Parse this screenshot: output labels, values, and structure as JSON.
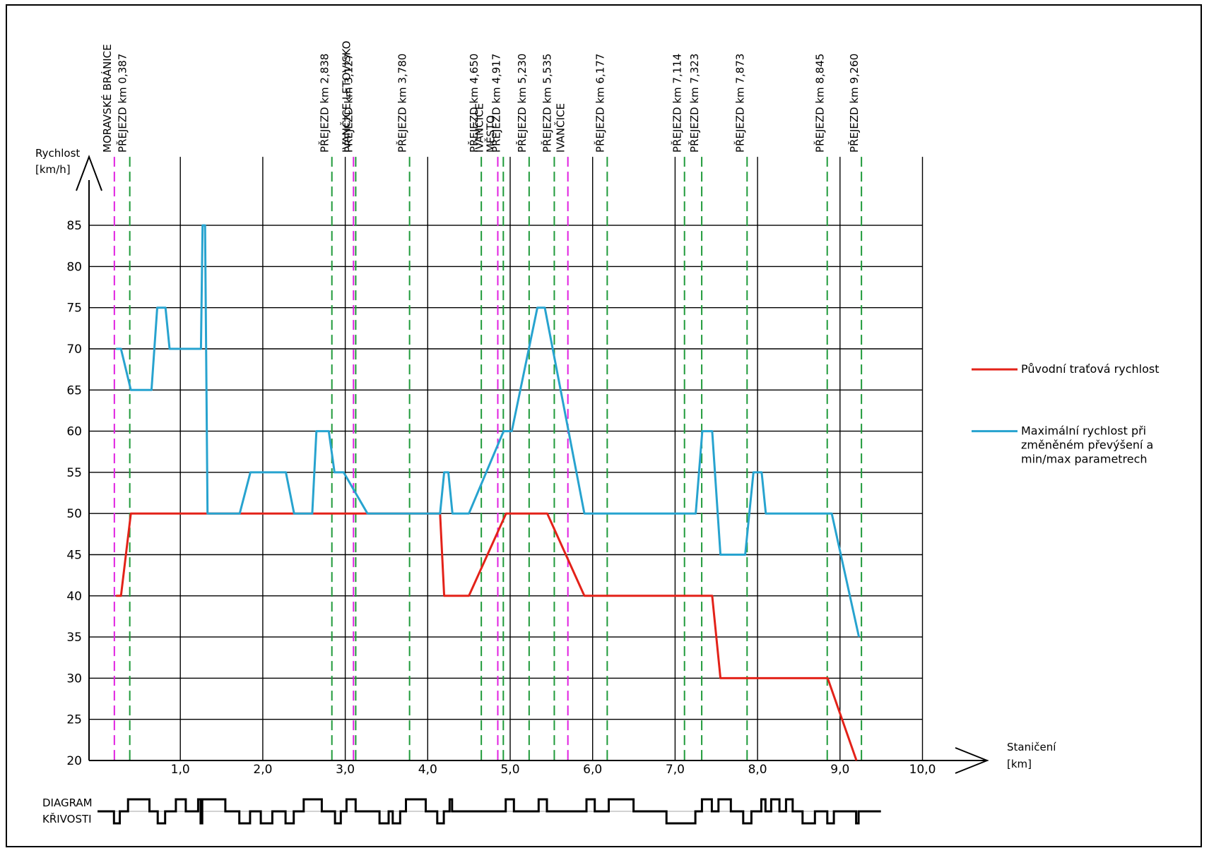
{
  "chart_data": {
    "type": "line",
    "y_axis_label": [
      "Rychlost",
      "[km/h]"
    ],
    "x_axis_label": [
      "Staničení",
      "[km]"
    ],
    "ylim": [
      20,
      85
    ],
    "xlim": [
      0,
      10.0
    ],
    "y_ticks": [
      20,
      25,
      30,
      35,
      40,
      45,
      50,
      55,
      60,
      65,
      70,
      75,
      80,
      85
    ],
    "x_ticks": [
      {
        "value": 1.0,
        "label": "1,0"
      },
      {
        "value": 2.0,
        "label": "2,0"
      },
      {
        "value": 3.0,
        "label": "3,0"
      },
      {
        "value": 4.0,
        "label": "4,0"
      },
      {
        "value": 5.0,
        "label": "5,0"
      },
      {
        "value": 6.0,
        "label": "6,0"
      },
      {
        "value": 7.0,
        "label": "7,0"
      },
      {
        "value": 8.0,
        "label": "8,0"
      },
      {
        "value": 9.0,
        "label": "9,0"
      },
      {
        "value": 10.0,
        "label": "10,0"
      }
    ],
    "grid": true,
    "markers": [
      {
        "km": 0.2,
        "type": "station",
        "lines": [
          "MORAVSKÉ BRÁNICE"
        ]
      },
      {
        "km": 0.387,
        "type": "crossing",
        "lines": [
          "PŘEJEZD km 0,387"
        ]
      },
      {
        "km": 2.838,
        "type": "crossing",
        "lines": [
          "PŘEJEZD km 2,838"
        ]
      },
      {
        "km": 3.1,
        "type": "station",
        "lines": [
          "IVANČICE LETOVISKO"
        ]
      },
      {
        "km": 3.127,
        "type": "crossing",
        "lines": [
          "PŘEJEZD km 3,127"
        ]
      },
      {
        "km": 3.78,
        "type": "crossing",
        "lines": [
          "PŘEJEZD km 3,780"
        ]
      },
      {
        "km": 4.65,
        "type": "crossing",
        "lines": [
          "PŘEJEZD km 4,650"
        ]
      },
      {
        "km": 4.85,
        "type": "station",
        "lines": [
          "IVANČICE",
          "MĚSTO"
        ]
      },
      {
        "km": 4.917,
        "type": "crossing",
        "lines": [
          "PŘEJEZD km 4,917"
        ]
      },
      {
        "km": 5.23,
        "type": "crossing",
        "lines": [
          "PŘEJEZD km 5,230"
        ]
      },
      {
        "km": 5.535,
        "type": "crossing",
        "lines": [
          "PŘEJEZD km 5,535"
        ]
      },
      {
        "km": 5.7,
        "type": "station",
        "lines": [
          "IVANČICE"
        ]
      },
      {
        "km": 6.177,
        "type": "crossing",
        "lines": [
          "PŘEJEZD km 6,177"
        ]
      },
      {
        "km": 7.114,
        "type": "crossing",
        "lines": [
          "PŘEJEZD km 7,114"
        ]
      },
      {
        "km": 7.323,
        "type": "crossing",
        "lines": [
          "PŘEJEZD km 7,323"
        ]
      },
      {
        "km": 7.873,
        "type": "crossing",
        "lines": [
          "PŘEJEZD km 7,873"
        ]
      },
      {
        "km": 8.845,
        "type": "crossing",
        "lines": [
          "PŘEJEZD km 8,845"
        ]
      },
      {
        "km": 9.26,
        "type": "crossing",
        "lines": [
          "PŘEJEZD km 9,260"
        ]
      }
    ],
    "series": [
      {
        "name": "Původní traťová rychlost",
        "color": "#e32219",
        "points": [
          [
            0.22,
            40
          ],
          [
            0.28,
            40
          ],
          [
            0.4,
            50
          ],
          [
            4.15,
            50
          ],
          [
            4.2,
            40
          ],
          [
            4.5,
            40
          ],
          [
            4.95,
            50
          ],
          [
            5.45,
            50
          ],
          [
            5.9,
            40
          ],
          [
            7.45,
            40
          ],
          [
            7.55,
            30
          ],
          [
            8.85,
            30
          ],
          [
            9.2,
            20
          ]
        ]
      },
      {
        "name": "Maximální rychlost při změněném převýšení a min/max parametrech",
        "color": "#27a3cf",
        "points": [
          [
            0.22,
            70
          ],
          [
            0.28,
            70
          ],
          [
            0.4,
            65
          ],
          [
            0.65,
            65
          ],
          [
            0.72,
            75
          ],
          [
            0.82,
            75
          ],
          [
            0.87,
            70
          ],
          [
            1.25,
            70
          ],
          [
            1.27,
            85
          ],
          [
            1.3,
            85
          ],
          [
            1.33,
            50
          ],
          [
            1.72,
            50
          ],
          [
            1.85,
            55
          ],
          [
            2.28,
            55
          ],
          [
            2.38,
            50
          ],
          [
            2.6,
            50
          ],
          [
            2.65,
            60
          ],
          [
            2.8,
            60
          ],
          [
            2.87,
            55
          ],
          [
            2.98,
            55
          ],
          [
            3.27,
            50
          ],
          [
            4.15,
            50
          ],
          [
            4.2,
            55
          ],
          [
            4.25,
            55
          ],
          [
            4.3,
            50
          ],
          [
            4.5,
            50
          ],
          [
            4.92,
            60
          ],
          [
            5.02,
            60
          ],
          [
            5.33,
            75
          ],
          [
            5.42,
            75
          ],
          [
            5.9,
            50
          ],
          [
            7.25,
            50
          ],
          [
            7.33,
            60
          ],
          [
            7.45,
            60
          ],
          [
            7.55,
            45
          ],
          [
            7.85,
            45
          ],
          [
            7.95,
            55
          ],
          [
            8.05,
            55
          ],
          [
            8.1,
            50
          ],
          [
            8.9,
            50
          ],
          [
            9.23,
            35
          ]
        ]
      }
    ],
    "legend_placement": "right",
    "curvature_diagram": {
      "label": [
        "DIAGRAM",
        "KŘIVOSTI"
      ],
      "segments": [
        [
          0,
          0
        ],
        [
          0.2,
          -1
        ],
        [
          0.27,
          0
        ],
        [
          0.37,
          1
        ],
        [
          0.63,
          0
        ],
        [
          0.73,
          -1
        ],
        [
          0.82,
          0
        ],
        [
          0.95,
          1
        ],
        [
          1.07,
          0
        ],
        [
          1.22,
          1
        ],
        [
          1.25,
          -1
        ],
        [
          1.27,
          1
        ],
        [
          1.3,
          1
        ],
        [
          1.55,
          0
        ],
        [
          1.72,
          -1
        ],
        [
          1.85,
          0
        ],
        [
          1.98,
          -1
        ],
        [
          2.12,
          0
        ],
        [
          2.28,
          -1
        ],
        [
          2.38,
          0
        ],
        [
          2.5,
          1
        ],
        [
          2.72,
          0
        ],
        [
          2.88,
          -1
        ],
        [
          2.95,
          0
        ],
        [
          3.02,
          1
        ],
        [
          3.13,
          0
        ],
        [
          3.42,
          -1
        ],
        [
          3.53,
          0
        ],
        [
          3.58,
          -1
        ],
        [
          3.67,
          0
        ],
        [
          3.74,
          1
        ],
        [
          3.98,
          0
        ],
        [
          4.12,
          -1
        ],
        [
          4.2,
          0
        ],
        [
          4.27,
          1
        ],
        [
          4.3,
          0
        ],
        [
          4.95,
          1
        ],
        [
          5.05,
          0
        ],
        [
          5.35,
          1
        ],
        [
          5.45,
          0
        ],
        [
          5.93,
          1
        ],
        [
          6.03,
          0
        ],
        [
          6.2,
          1
        ],
        [
          6.5,
          0
        ],
        [
          6.9,
          -1
        ],
        [
          7.25,
          0
        ],
        [
          7.33,
          1
        ],
        [
          7.45,
          0
        ],
        [
          7.53,
          1
        ],
        [
          7.68,
          0
        ],
        [
          7.83,
          -1
        ],
        [
          7.93,
          0
        ],
        [
          8.05,
          1
        ],
        [
          8.1,
          0
        ],
        [
          8.17,
          1
        ],
        [
          8.27,
          0
        ],
        [
          8.35,
          1
        ],
        [
          8.43,
          0
        ],
        [
          8.55,
          -1
        ],
        [
          8.7,
          0
        ],
        [
          8.85,
          -1
        ],
        [
          8.93,
          0
        ],
        [
          9.2,
          -1
        ],
        [
          9.23,
          0
        ],
        [
          9.5,
          0
        ]
      ]
    }
  }
}
